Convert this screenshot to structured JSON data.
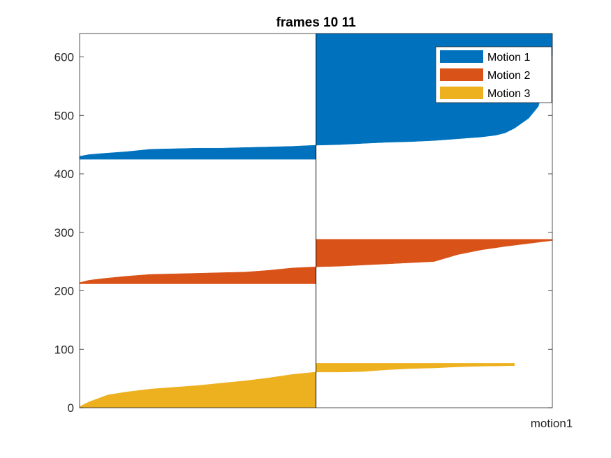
{
  "chart_data": {
    "type": "area",
    "title": "frames 10 11",
    "xlabel": "motion1",
    "ylabel": "",
    "ylim": [
      0,
      640
    ],
    "yticks": [
      0,
      100,
      200,
      300,
      400,
      500,
      600
    ],
    "grid": false,
    "legend_position": "top-right",
    "divider_x": 0.5,
    "series": [
      {
        "name": "Motion 1",
        "color": "#0072BD",
        "segments": [
          {
            "x": [
              0.0,
              0.02,
              0.05,
              0.1,
              0.15,
              0.2,
              0.25,
              0.3,
              0.35,
              0.4,
              0.45,
              0.5
            ],
            "low": [
              425,
              425,
              425,
              425,
              425,
              425,
              425,
              425,
              425,
              425,
              425,
              425
            ],
            "high": [
              430,
              433,
              435,
              438,
              442,
              443,
              444,
              444,
              445,
              446,
              447,
              449
            ]
          },
          {
            "x": [
              0.5,
              0.55,
              0.6,
              0.65,
              0.7,
              0.75,
              0.8,
              0.85,
              0.88,
              0.9,
              0.92,
              0.95,
              0.97,
              0.98,
              0.99,
              1.0
            ],
            "low": [
              449,
              450,
              452,
              454,
              455,
              457,
              460,
              463,
              466,
              470,
              478,
              495,
              515,
              540,
              570,
              605
            ],
            "high": [
              640,
              640,
              640,
              640,
              640,
              640,
              640,
              640,
              640,
              640,
              640,
              640,
              640,
              640,
              640,
              640
            ]
          }
        ]
      },
      {
        "name": "Motion 2",
        "color": "#D95319",
        "segments": [
          {
            "x": [
              0.0,
              0.02,
              0.05,
              0.1,
              0.15,
              0.2,
              0.25,
              0.3,
              0.35,
              0.4,
              0.45,
              0.5
            ],
            "low": [
              212,
              212,
              212,
              212,
              212,
              212,
              212,
              212,
              212,
              212,
              212,
              212
            ],
            "high": [
              214,
              218,
              221,
              225,
              228,
              229,
              230,
              231,
              232,
              235,
              239,
              241
            ]
          },
          {
            "x": [
              0.5,
              0.55,
              0.6,
              0.65,
              0.7,
              0.75,
              0.8,
              0.85,
              0.9,
              0.95,
              1.0
            ],
            "low": [
              241,
              242,
              244,
              246,
              248,
              250,
              262,
              270,
              276,
              281,
              286
            ],
            "high": [
              288,
              288,
              288,
              288,
              288,
              288,
              288,
              288,
              288,
              288,
              288
            ]
          }
        ]
      },
      {
        "name": "Motion 3",
        "color": "#EDB120",
        "segments": [
          {
            "x": [
              0.0,
              0.01,
              0.02,
              0.04,
              0.06,
              0.1,
              0.15,
              0.2,
              0.25,
              0.3,
              0.35,
              0.4,
              0.45,
              0.5
            ],
            "low": [
              0,
              0,
              0,
              0,
              0,
              0,
              0,
              0,
              0,
              0,
              0,
              0,
              0,
              0
            ],
            "high": [
              2,
              6,
              10,
              16,
              22,
              27,
              32,
              35,
              38,
              42,
              46,
              51,
              57,
              61
            ]
          },
          {
            "x": [
              0.5,
              0.55,
              0.6,
              0.65,
              0.7,
              0.75,
              0.8,
              0.85,
              0.92
            ],
            "low": [
              61,
              61,
              62,
              65,
              67,
              68,
              70,
              71,
              72
            ],
            "high": [
              76,
              76,
              76,
              76,
              76,
              76,
              76,
              76,
              76
            ]
          }
        ]
      }
    ]
  }
}
